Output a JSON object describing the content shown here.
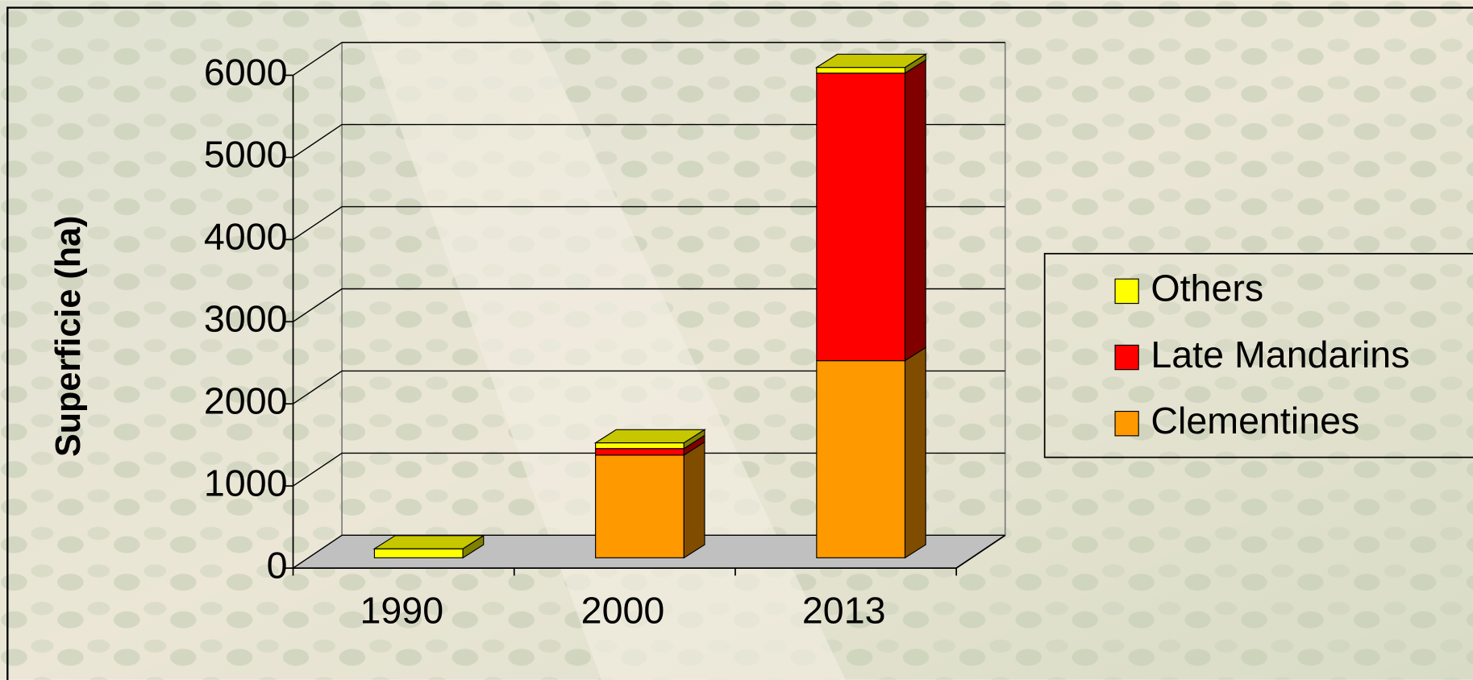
{
  "chart_data": {
    "type": "bar3d-stacked",
    "ylabel": "Superficie (ha)",
    "categories": [
      "1990",
      "2000",
      "2013"
    ],
    "series": [
      {
        "name": "Clementines",
        "color": "#FF9900",
        "values": [
          0,
          1250,
          2400
        ]
      },
      {
        "name": "Late Mandarins",
        "color": "#FF0000",
        "values": [
          0,
          80,
          3500
        ]
      },
      {
        "name": "Others",
        "color": "#FFFF00",
        "values": [
          110,
          70,
          70
        ]
      }
    ],
    "ylim": [
      0,
      6000
    ],
    "yticks": [
      0,
      1000,
      2000,
      3000,
      4000,
      5000,
      6000
    ],
    "grid": true
  }
}
